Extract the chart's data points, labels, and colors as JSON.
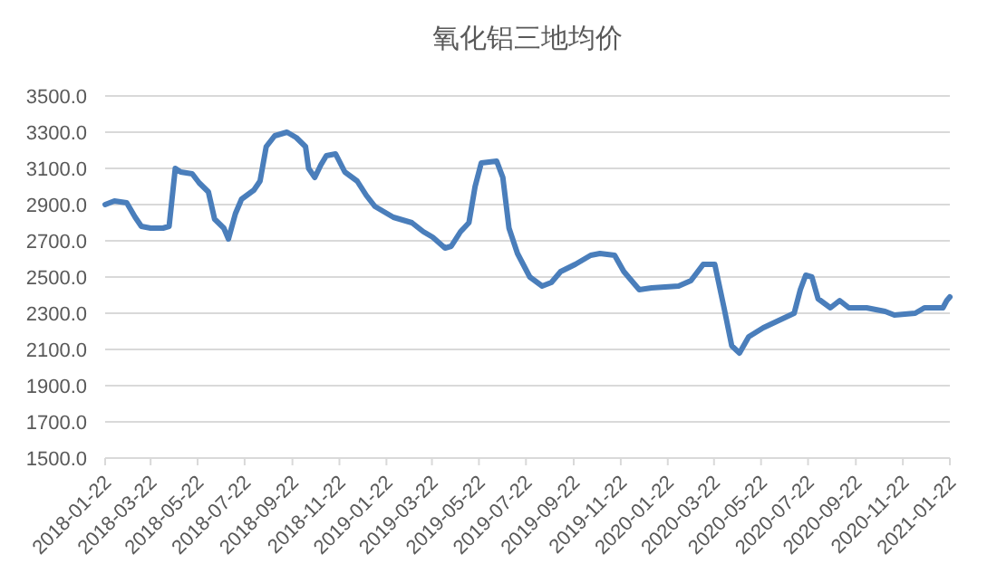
{
  "chart_data": {
    "type": "line",
    "title": "氧化铝三地均价",
    "x": [
      "2018-01-22",
      "2018-02-03",
      "2018-02-19",
      "2018-03-02",
      "2018-03-10",
      "2018-03-22",
      "2018-04-07",
      "2018-04-15",
      "2018-04-23",
      "2018-04-30",
      "2018-05-15",
      "2018-05-24",
      "2018-06-05",
      "2018-06-13",
      "2018-06-25",
      "2018-07-01",
      "2018-07-10",
      "2018-07-18",
      "2018-08-03",
      "2018-08-11",
      "2018-08-19",
      "2018-08-30",
      "2018-09-15",
      "2018-09-27",
      "2018-10-09",
      "2018-10-13",
      "2018-10-21",
      "2018-10-29",
      "2018-11-05",
      "2018-11-17",
      "2018-11-29",
      "2018-12-15",
      "2018-12-27",
      "2019-01-07",
      "2019-01-31",
      "2019-02-24",
      "2019-03-11",
      "2019-03-23",
      "2019-04-08",
      "2019-04-16",
      "2019-04-28",
      "2019-05-09",
      "2019-05-17",
      "2019-05-25",
      "2019-06-14",
      "2019-06-22",
      "2019-06-30",
      "2019-07-11",
      "2019-07-27",
      "2019-08-12",
      "2019-08-24",
      "2019-09-05",
      "2019-09-24",
      "2019-10-14",
      "2019-10-26",
      "2019-11-14",
      "2019-11-26",
      "2019-12-16",
      "2020-01-01",
      "2020-02-05",
      "2020-02-21",
      "2020-03-08",
      "2020-03-23",
      "2020-04-04",
      "2020-04-14",
      "2020-04-24",
      "2020-05-06",
      "2020-05-25",
      "2020-06-14",
      "2020-07-04",
      "2020-07-12",
      "2020-07-19",
      "2020-07-27",
      "2020-08-04",
      "2020-08-20",
      "2020-09-01",
      "2020-09-13",
      "2020-10-06",
      "2020-10-30",
      "2020-11-11",
      "2020-12-08",
      "2020-12-20",
      "2021-01-13",
      "2021-01-18",
      "2021-01-22"
    ],
    "values": [
      2900,
      2920,
      2910,
      2830,
      2780,
      2770,
      2770,
      2780,
      3100,
      3080,
      3070,
      3020,
      2970,
      2820,
      2770,
      2710,
      2850,
      2930,
      2980,
      3030,
      3220,
      3280,
      3300,
      3270,
      3220,
      3100,
      3050,
      3120,
      3170,
      3180,
      3080,
      3030,
      2950,
      2890,
      2830,
      2800,
      2750,
      2720,
      2660,
      2670,
      2750,
      2800,
      3000,
      3130,
      3140,
      3050,
      2770,
      2630,
      2500,
      2450,
      2470,
      2530,
      2570,
      2620,
      2630,
      2620,
      2530,
      2430,
      2440,
      2450,
      2480,
      2570,
      2570,
      2330,
      2120,
      2080,
      2170,
      2220,
      2260,
      2300,
      2430,
      2510,
      2500,
      2380,
      2330,
      2370,
      2330,
      2330,
      2310,
      2290,
      2300,
      2330,
      2330,
      2370,
      2390
    ],
    "color": "#4a7ebb",
    "line_style": "solid",
    "grid": "y",
    "xlim": [
      "2018-01-22",
      "2021-01-22"
    ],
    "xticks": [
      "2018-01-22",
      "2018-03-22",
      "2018-05-22",
      "2018-07-22",
      "2018-09-22",
      "2018-11-22",
      "2019-01-22",
      "2019-03-22",
      "2019-05-22",
      "2019-07-22",
      "2019-09-22",
      "2019-11-22",
      "2020-01-22",
      "2020-03-22",
      "2020-05-22",
      "2020-07-22",
      "2020-09-22",
      "2020-11-22",
      "2021-01-22"
    ],
    "ylim": [
      1500,
      3500
    ],
    "yticks": [
      {
        "value": 1500,
        "label": "1500.0"
      },
      {
        "value": 1700,
        "label": "1700.0"
      },
      {
        "value": 1900,
        "label": "1900.0"
      },
      {
        "value": 2100,
        "label": "2100.0"
      },
      {
        "value": 2300,
        "label": "2300.0"
      },
      {
        "value": 2500,
        "label": "2500.0"
      },
      {
        "value": 2700,
        "label": "2700.0"
      },
      {
        "value": 2900,
        "label": "2900.0"
      },
      {
        "value": 3100,
        "label": "3100.0"
      },
      {
        "value": 3300,
        "label": "3300.0"
      },
      {
        "value": 3500,
        "label": "3500.0"
      }
    ]
  }
}
